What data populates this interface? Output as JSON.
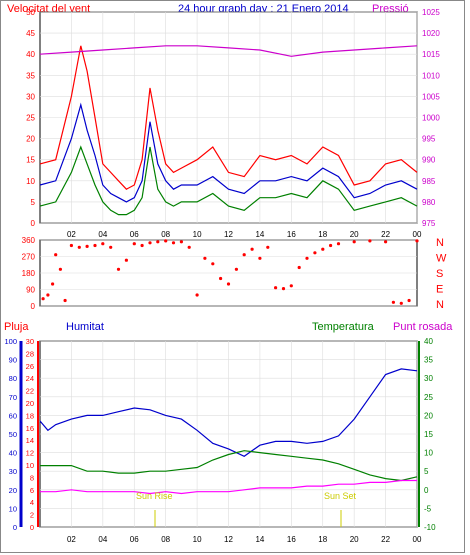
{
  "top": {
    "title": "24 hour graph day : 21 Enero 2014",
    "left_label": "Velocitat del vent",
    "right_label": "Pressió",
    "left_ticks": [
      "0",
      "5",
      "10",
      "15",
      "20",
      "25",
      "30",
      "35",
      "40",
      "45",
      "50"
    ],
    "right_ticks": [
      "975",
      "980",
      "985",
      "990",
      "995",
      "1000",
      "1005",
      "1010",
      "1015",
      "1020",
      "1025"
    ]
  },
  "wind_dir": {
    "left_ticks": [
      "0",
      "90",
      "180",
      "270",
      "360"
    ],
    "right_letters": [
      "N",
      "W",
      "S",
      "E",
      "N"
    ]
  },
  "bottom": {
    "labels": {
      "rain": "Pluja",
      "humidity": "Humitat",
      "temperature": "Temperatura",
      "dewpoint": "Punt rosada"
    },
    "left_outer_ticks": [
      "0",
      "10",
      "20",
      "30",
      "40",
      "50",
      "60",
      "70",
      "80",
      "90",
      "100"
    ],
    "left_inner_ticks": [
      "0",
      "2",
      "4",
      "6",
      "8",
      "10",
      "12",
      "14",
      "16",
      "18",
      "20",
      "22",
      "24",
      "26",
      "28",
      "30"
    ],
    "right_ticks": [
      "-10",
      "-5",
      "0",
      "5",
      "10",
      "15",
      "20",
      "25",
      "30",
      "35",
      "40"
    ],
    "sun_rise": "Sun Rise",
    "sun_set": "Sun Set"
  },
  "x_ticks": [
    "02",
    "04",
    "06",
    "08",
    "10",
    "12",
    "14",
    "16",
    "18",
    "20",
    "22",
    "00"
  ],
  "colors": {
    "wind_max": "#ff0000",
    "wind_avg": "#0000cc",
    "wind_min": "#008000",
    "pressure": "#cc00cc",
    "humidity": "#0000cc",
    "temperature": "#008000",
    "dewpoint": "#ff00ff",
    "rain": "#ff0000",
    "sun": "#cccc00"
  },
  "chart_data": [
    {
      "type": "line",
      "title": "24 hour graph day : 21 Enero 2014",
      "x_range_hours": [
        0,
        24
      ],
      "ylabel": "Velocitat del vent",
      "ylim": [
        0,
        50
      ],
      "y2label": "Pressió",
      "y2lim": [
        975,
        1025
      ],
      "series": [
        {
          "name": "wind_max",
          "x": [
            0,
            1,
            2,
            2.6,
            3,
            3.5,
            4,
            4.5,
            5,
            5.5,
            6,
            6.5,
            7,
            7.5,
            8,
            8.5,
            9,
            10,
            11,
            12,
            13,
            14,
            15,
            16,
            17,
            18,
            19,
            20,
            21,
            22,
            23,
            24
          ],
          "values": [
            14,
            15,
            30,
            42,
            36,
            25,
            14,
            12,
            10,
            8,
            9,
            15,
            32,
            22,
            14,
            12,
            13,
            15,
            18,
            12,
            11,
            16,
            15,
            16,
            14,
            18,
            16,
            9,
            10,
            14,
            15,
            12
          ]
        },
        {
          "name": "wind_avg",
          "x": [
            0,
            1,
            2,
            2.6,
            3,
            3.5,
            4,
            4.5,
            5,
            5.5,
            6,
            6.5,
            7,
            7.5,
            8,
            8.5,
            9,
            10,
            11,
            12,
            13,
            14,
            15,
            16,
            17,
            18,
            19,
            20,
            21,
            22,
            23,
            24
          ],
          "values": [
            9,
            10,
            20,
            28,
            22,
            16,
            9,
            7,
            6,
            5,
            6,
            10,
            24,
            14,
            10,
            8,
            9,
            9,
            11,
            8,
            7,
            10,
            10,
            11,
            10,
            13,
            11,
            6,
            7,
            9,
            10,
            8
          ]
        },
        {
          "name": "wind_min",
          "x": [
            0,
            1,
            2,
            2.6,
            3,
            3.5,
            4,
            4.5,
            5,
            5.5,
            6,
            6.5,
            7,
            7.5,
            8,
            8.5,
            9,
            10,
            11,
            12,
            13,
            14,
            15,
            16,
            17,
            18,
            19,
            20,
            21,
            22,
            23,
            24
          ],
          "values": [
            4,
            5,
            12,
            18,
            14,
            9,
            5,
            3,
            2,
            2,
            3,
            6,
            18,
            8,
            5,
            4,
            5,
            5,
            7,
            4,
            3,
            6,
            6,
            7,
            6,
            10,
            8,
            3,
            4,
            5,
            6,
            4
          ]
        },
        {
          "name": "pressure",
          "x": [
            0,
            2,
            4,
            6,
            8,
            10,
            12,
            14,
            16,
            18,
            20,
            22,
            24
          ],
          "values": [
            1015,
            1015.5,
            1016,
            1016.5,
            1017,
            1017,
            1016.5,
            1016,
            1014.5,
            1015.5,
            1016,
            1016.5,
            1017
          ]
        }
      ]
    },
    {
      "type": "scatter",
      "x_range_hours": [
        0,
        24
      ],
      "ylim": [
        0,
        360
      ],
      "series": [
        {
          "name": "wind_direction",
          "x": [
            0.2,
            0.5,
            0.8,
            1.0,
            1.3,
            1.6,
            2.0,
            2.5,
            3.0,
            3.5,
            4.0,
            4.5,
            5.0,
            5.5,
            6.0,
            6.5,
            7.0,
            7.5,
            8.0,
            8.5,
            9.0,
            9.5,
            10.0,
            10.5,
            11.0,
            11.5,
            12.0,
            12.5,
            13.0,
            13.5,
            14.0,
            14.5,
            15.0,
            15.5,
            16.0,
            16.5,
            17.0,
            17.5,
            18.0,
            18.5,
            19.0,
            20.0,
            21.0,
            22.0,
            22.5,
            23.0,
            23.5,
            24.0
          ],
          "values": [
            40,
            60,
            120,
            280,
            200,
            30,
            330,
            320,
            325,
            330,
            340,
            320,
            200,
            250,
            340,
            330,
            345,
            350,
            355,
            345,
            350,
            320,
            60,
            260,
            230,
            150,
            120,
            200,
            280,
            310,
            260,
            320,
            100,
            95,
            110,
            210,
            260,
            290,
            310,
            330,
            340,
            350,
            355,
            350,
            20,
            15,
            30,
            355
          ]
        }
      ]
    },
    {
      "type": "line",
      "x_range_hours": [
        0,
        24
      ],
      "y_outer_lim": [
        0,
        100
      ],
      "y_inner_lim": [
        0,
        30
      ],
      "y2lim": [
        -10,
        40
      ],
      "series": [
        {
          "name": "humidity",
          "x": [
            0,
            0.5,
            1,
            2,
            3,
            4,
            5,
            6,
            7,
            8,
            9,
            10,
            11,
            12,
            13,
            14,
            15,
            16,
            17,
            18,
            19,
            20,
            21,
            22,
            23,
            24
          ],
          "values": [
            57,
            52,
            55,
            58,
            60,
            60,
            62,
            64,
            63,
            60,
            58,
            52,
            45,
            42,
            38,
            44,
            46,
            46,
            45,
            46,
            49,
            58,
            70,
            82,
            85,
            84
          ]
        },
        {
          "name": "temperature",
          "x": [
            0,
            1,
            2,
            3,
            4,
            5,
            6,
            7,
            8,
            9,
            10,
            11,
            12,
            13,
            14,
            15,
            16,
            17,
            18,
            19,
            20,
            21,
            22,
            23,
            24
          ],
          "values": [
            6.5,
            6.5,
            6.5,
            5,
            5,
            4.5,
            4.5,
            5,
            5,
            5.5,
            6,
            8,
            9.5,
            10.5,
            10,
            9.5,
            9,
            8.5,
            8,
            7,
            5.5,
            4,
            3,
            2.5,
            3.5
          ]
        },
        {
          "name": "dewpoint",
          "x": [
            0,
            1,
            2,
            3,
            4,
            5,
            6,
            7,
            8,
            9,
            10,
            11,
            12,
            13,
            14,
            15,
            16,
            17,
            18,
            19,
            20,
            21,
            22,
            23,
            24
          ],
          "values": [
            -0.5,
            -0.5,
            0,
            -0.5,
            -0.5,
            -0.5,
            -0.5,
            -1,
            -0.5,
            -1,
            -0.5,
            -0.5,
            -0.5,
            0,
            0.5,
            0.5,
            0.5,
            1,
            1,
            1.5,
            1.5,
            2,
            2,
            2.5,
            2.5
          ]
        }
      ]
    }
  ]
}
